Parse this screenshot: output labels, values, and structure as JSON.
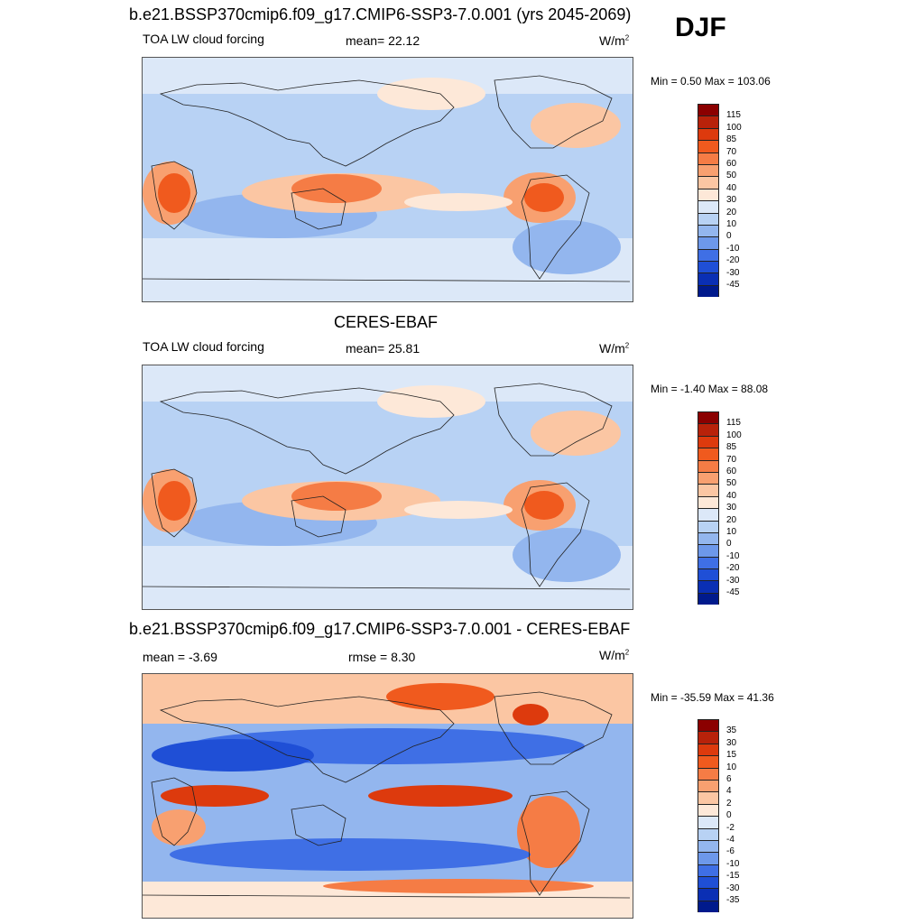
{
  "season": "DJF",
  "panels": [
    {
      "title": "b.e21.BSSP370cmip6.f09_g17.CMIP6-SSP3-7.0.001 (yrs 2045-2069)",
      "left_label": "TOA LW cloud forcing",
      "center_label": "mean=  22.12",
      "units": "W/m",
      "units_sup": "2",
      "minmax": "Min =   0.50 Max = 103.06",
      "colorbar_labels": [
        "115",
        "100",
        "85",
        "70",
        "60",
        "50",
        "40",
        "30",
        "20",
        "10",
        "0",
        "-10",
        "-20",
        "-30",
        "-45"
      ],
      "colorbar_colors": [
        "#8b0000",
        "#b8220a",
        "#dd3a0d",
        "#f05a1e",
        "#f57c45",
        "#f8a070",
        "#fbc6a3",
        "#fde8d8",
        "#dce8f8",
        "#b8d2f4",
        "#93b6ee",
        "#6d98ea",
        "#3f6fe5",
        "#1f4fd6",
        "#0a2fb4",
        "#001a8c"
      ],
      "map_type": "clear"
    },
    {
      "title": "CERES-EBAF",
      "left_label": "TOA LW cloud forcing",
      "center_label": "mean=  25.81",
      "units": "W/m",
      "units_sup": "2",
      "minmax": "Min =  -1.40 Max =  88.08",
      "colorbar_labels": [
        "115",
        "100",
        "85",
        "70",
        "60",
        "50",
        "40",
        "30",
        "20",
        "10",
        "0",
        "-10",
        "-20",
        "-30",
        "-45"
      ],
      "colorbar_colors": [
        "#8b0000",
        "#b8220a",
        "#dd3a0d",
        "#f05a1e",
        "#f57c45",
        "#f8a070",
        "#fbc6a3",
        "#fde8d8",
        "#dce8f8",
        "#b8d2f4",
        "#93b6ee",
        "#6d98ea",
        "#3f6fe5",
        "#1f4fd6",
        "#0a2fb4",
        "#001a8c"
      ],
      "map_type": "clear"
    },
    {
      "title": "b.e21.BSSP370cmip6.f09_g17.CMIP6-SSP3-7.0.001 - CERES-EBAF",
      "left_label": "mean =  -3.69",
      "center_label": "rmse =   8.30",
      "units": "W/m",
      "units_sup": "2",
      "minmax": "Min = -35.59 Max =  41.36",
      "colorbar_labels": [
        "35",
        "30",
        "15",
        "10",
        "6",
        "4",
        "2",
        "0",
        "-2",
        "-4",
        "-6",
        "-10",
        "-15",
        "-30",
        "-35"
      ],
      "colorbar_colors": [
        "#8b0000",
        "#b8220a",
        "#dd3a0d",
        "#f05a1e",
        "#f57c45",
        "#f8a070",
        "#fbc6a3",
        "#fde8d8",
        "#dce8f8",
        "#b8d2f4",
        "#93b6ee",
        "#6d98ea",
        "#3f6fe5",
        "#1f4fd6",
        "#0a2fb4",
        "#001a8c"
      ],
      "map_type": "diff"
    }
  ]
}
